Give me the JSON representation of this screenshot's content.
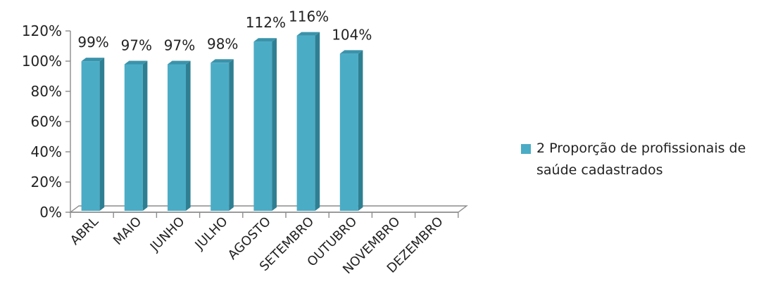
{
  "chart_data": {
    "type": "bar",
    "categories": [
      "ABRL",
      "MAIO",
      "JUNHO",
      "JULHO",
      "AGOSTO",
      "SETEMBRO",
      "OUTUBRO",
      "NOVEMBRO",
      "DEZEMBRO"
    ],
    "series": [
      {
        "name": "2 Proporção de profissionais de saúde cadastrados",
        "values": [
          99,
          97,
          97,
          98,
          112,
          116,
          104,
          null,
          null
        ],
        "data_labels": [
          "99%",
          "97%",
          "97%",
          "98%",
          "112%",
          "116%",
          "104%",
          "",
          ""
        ],
        "color": "#4BACC6"
      }
    ],
    "y_ticks": [
      "0%",
      "20%",
      "40%",
      "60%",
      "80%",
      "100%",
      "120%"
    ],
    "ylim": [
      0,
      120
    ],
    "grid": false,
    "legend_position": "right",
    "style": "3d-column"
  }
}
